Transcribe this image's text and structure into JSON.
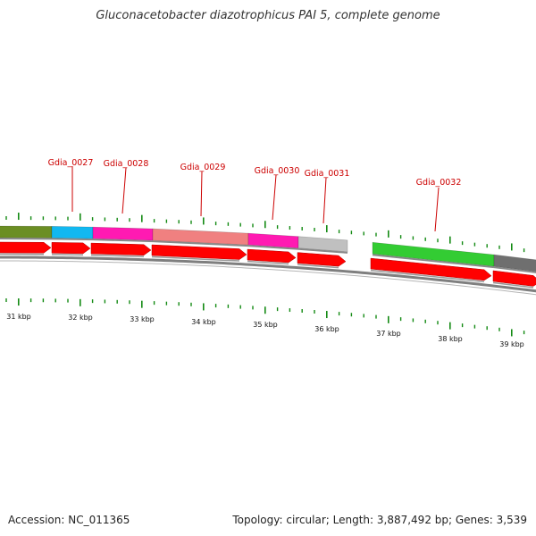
{
  "title": "Gluconacetobacter diazotrophicus PAI 5, complete genome",
  "footer": {
    "accession": "Accession: NC_011365",
    "summary": "Topology: circular; Length: 3,887,492 bp; Genes: 3,539"
  },
  "colors": {
    "gene_label": "#cc0000",
    "arrow": "#ff0000",
    "tick": "#138a13",
    "backbone": "#7f7f7f"
  },
  "genes": [
    {
      "id": "Gdia_0027",
      "label": "Gdia_0027"
    },
    {
      "id": "Gdia_0028",
      "label": "Gdia_0028"
    },
    {
      "id": "Gdia_0029",
      "label": "Gdia_0029"
    },
    {
      "id": "Gdia_0030",
      "label": "Gdia_0030"
    },
    {
      "id": "Gdia_0031",
      "label": "Gdia_0031"
    },
    {
      "id": "Gdia_0032",
      "label": "Gdia_0032"
    }
  ],
  "kbp_labels": [
    "31 kbp",
    "32 kbp",
    "33 kbp",
    "34 kbp",
    "35 kbp",
    "36 kbp",
    "37 kbp",
    "38 kbp",
    "39 kbp"
  ],
  "cog_blocks": [
    {
      "name": "cog-block-olive",
      "color": "#6b8e23"
    },
    {
      "name": "cog-block-cyan",
      "color": "#12b8f0"
    },
    {
      "name": "cog-block-magenta",
      "color": "#ff1ab2"
    },
    {
      "name": "cog-block-salmon",
      "color": "#f08080"
    },
    {
      "name": "cog-block-magenta-2",
      "color": "#ff1ab2"
    },
    {
      "name": "cog-block-silver",
      "color": "#c0c0c0"
    },
    {
      "name": "cog-block-green",
      "color": "#33cc33"
    },
    {
      "name": "cog-block-gray",
      "color": "#6f6f6f"
    }
  ]
}
